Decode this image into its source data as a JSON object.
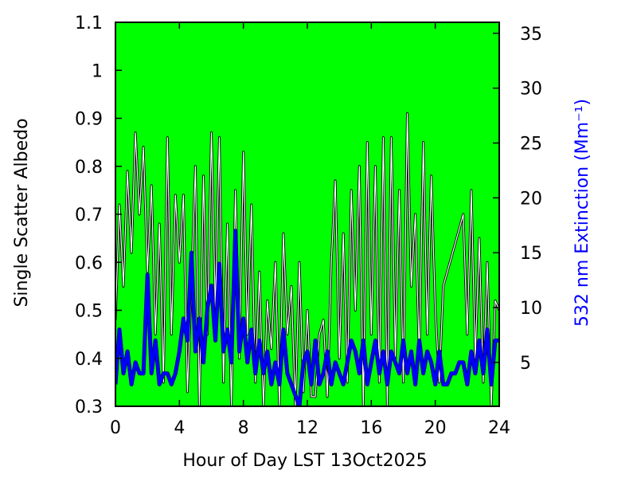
{
  "chart_data": {
    "type": "line",
    "xlabel": "Hour of Day LST 13Oct2025",
    "ylabel": "Single Scatter Albedo",
    "y2label": "532 nm Extinction (Mm⁻¹)",
    "x": [
      0,
      0.25,
      0.5,
      0.75,
      1,
      1.25,
      1.5,
      1.75,
      2,
      2.25,
      2.5,
      2.75,
      3,
      3.25,
      3.5,
      3.75,
      4,
      4.25,
      4.5,
      4.75,
      5,
      5.25,
      5.5,
      5.75,
      6,
      6.25,
      6.5,
      6.75,
      7,
      7.25,
      7.5,
      7.75,
      8,
      8.25,
      8.5,
      8.75,
      9,
      9.25,
      9.5,
      9.75,
      10,
      10.25,
      10.5,
      10.75,
      11,
      11.25,
      11.5,
      11.75,
      12,
      12.25,
      12.5,
      12.75,
      13,
      13.25,
      13.5,
      13.75,
      14,
      14.25,
      14.5,
      14.75,
      15,
      15.25,
      15.5,
      15.75,
      16,
      16.25,
      16.5,
      16.75,
      17,
      17.25,
      17.5,
      17.75,
      18,
      18.25,
      18.5,
      18.75,
      19,
      19.25,
      19.5,
      19.75,
      20,
      20.25,
      20.5,
      20.75,
      21,
      21.25,
      21.5,
      21.75,
      22,
      22.25,
      22.5,
      22.75,
      23,
      23.25,
      23.5,
      23.75,
      24
    ],
    "series": [
      {
        "name": "Single Scatter Albedo",
        "color": "#ffffff",
        "values": [
          0.48,
          0.72,
          0.55,
          0.79,
          0.62,
          0.87,
          0.7,
          0.84,
          0.58,
          0.76,
          0.45,
          0.68,
          0.35,
          0.86,
          0.45,
          0.74,
          0.6,
          0.74,
          0.33,
          0.55,
          0.8,
          0.3,
          0.78,
          0.45,
          0.87,
          0.5,
          0.86,
          0.35,
          0.68,
          0.3,
          0.75,
          0.4,
          0.83,
          0.45,
          0.72,
          0.35,
          0.58,
          0.3,
          0.52,
          0.42,
          0.6,
          0.3,
          0.66,
          0.45,
          0.55,
          0.3,
          0.6,
          0.33,
          0.5,
          0.32,
          0.32,
          0.45,
          0.48,
          0.32,
          0.6,
          0.77,
          0.4,
          0.66,
          0.35,
          0.75,
          0.5,
          0.8,
          0.3,
          0.85,
          0.45,
          0.8,
          0.35,
          0.86,
          0.3,
          0.86,
          0.4,
          0.75,
          0.35,
          0.91,
          0.55,
          0.7,
          0.4,
          0.85,
          0.45,
          0.78,
          0.5,
          0.35,
          0.55,
          0.58,
          0.61,
          0.64,
          0.67,
          0.7,
          0.45,
          0.75,
          0.4,
          0.65,
          0.35,
          0.6,
          0.3,
          0.52,
          0.5
        ]
      },
      {
        "name": "532 nm Extinction",
        "color": "#0000ff",
        "axis": "y2",
        "values": [
          3,
          8,
          4,
          6,
          3,
          5,
          4,
          4,
          13,
          4,
          7,
          3,
          4,
          4,
          3,
          4,
          6,
          9,
          7,
          15,
          6,
          9,
          5,
          10,
          12,
          7,
          14,
          6,
          8,
          5,
          17,
          6,
          9,
          5,
          8,
          4,
          7,
          4,
          6,
          3,
          5,
          3,
          8,
          4,
          3,
          2,
          1,
          5,
          6,
          3,
          7,
          3,
          4,
          6,
          3,
          5,
          4,
          3,
          5,
          7,
          6,
          4,
          7,
          3,
          5,
          7,
          4,
          6,
          3,
          6,
          5,
          4,
          7,
          4,
          6,
          3,
          7,
          4,
          6,
          5,
          3,
          6,
          3,
          3,
          4,
          4,
          5,
          5,
          3,
          6,
          4,
          7,
          4,
          8,
          3,
          7,
          7
        ]
      }
    ],
    "xlim": [
      0,
      24
    ],
    "xticks": [
      0,
      4,
      8,
      12,
      16,
      20,
      24
    ],
    "ylim": [
      0.3,
      1.1
    ],
    "yticks": [
      0.3,
      0.4,
      0.5,
      0.6,
      0.7,
      0.8,
      0.9,
      1,
      1.1
    ],
    "y2lim": [
      1,
      36
    ],
    "y2ticks": [
      5,
      10,
      15,
      20,
      25,
      30,
      35
    ],
    "background": "#00ff00"
  }
}
